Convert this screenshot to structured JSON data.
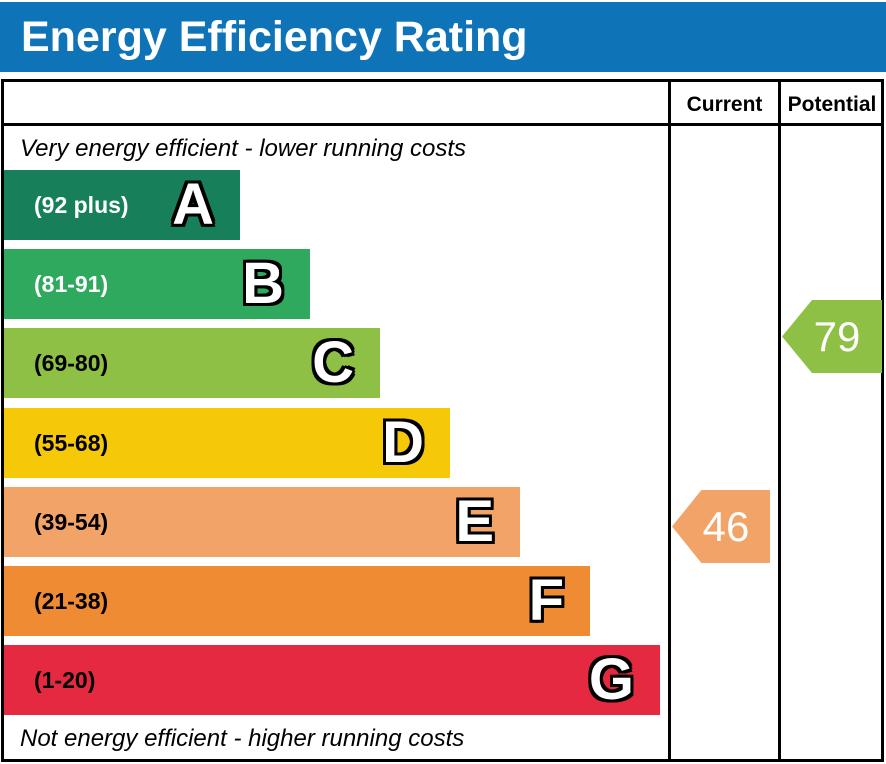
{
  "title": "Energy Efficiency Rating",
  "columns": {
    "current_label": "Current",
    "potential_label": "Potential"
  },
  "notes": {
    "top": "Very energy efficient - lower running costs",
    "bottom": "Not energy efficient - higher running costs"
  },
  "colors": {
    "title_bar_bg": "#0f73b8",
    "title_text": "#ffffff",
    "border": "#000000"
  },
  "bands": [
    {
      "letter": "A",
      "range": "(92 plus)",
      "color": "#17805a",
      "label_color": "#ffffff"
    },
    {
      "letter": "B",
      "range": "(81-91)",
      "color": "#2fa95e",
      "label_color": "#ffffff"
    },
    {
      "letter": "C",
      "range": "(69-80)",
      "color": "#8dc044",
      "label_color": "#000000"
    },
    {
      "letter": "D",
      "range": "(55-68)",
      "color": "#f5c908",
      "label_color": "#000000"
    },
    {
      "letter": "E",
      "range": "(39-54)",
      "color": "#f2a368",
      "label_color": "#000000"
    },
    {
      "letter": "F",
      "range": "(21-38)",
      "color": "#ee8b33",
      "label_color": "#000000"
    },
    {
      "letter": "G",
      "range": "(1-20)",
      "color": "#e52940",
      "label_color": "#000000"
    }
  ],
  "current": {
    "value": "46",
    "color": "#f2a368",
    "band": "E"
  },
  "potential": {
    "value": "79",
    "color": "#8dc044",
    "band": "C"
  },
  "chart_data": {
    "type": "bar",
    "title": "Energy Efficiency Rating",
    "categories": [
      "A",
      "B",
      "C",
      "D",
      "E",
      "F",
      "G"
    ],
    "ranges": [
      "92 plus",
      "81-91",
      "69-80",
      "55-68",
      "39-54",
      "21-38",
      "1-20"
    ],
    "column_headers": [
      "Current",
      "Potential"
    ],
    "annotations": [
      "Very energy efficient - lower running costs",
      "Not energy efficient - higher running costs"
    ],
    "current_rating": 46,
    "current_band": "E",
    "potential_rating": 79,
    "potential_band": "C"
  }
}
